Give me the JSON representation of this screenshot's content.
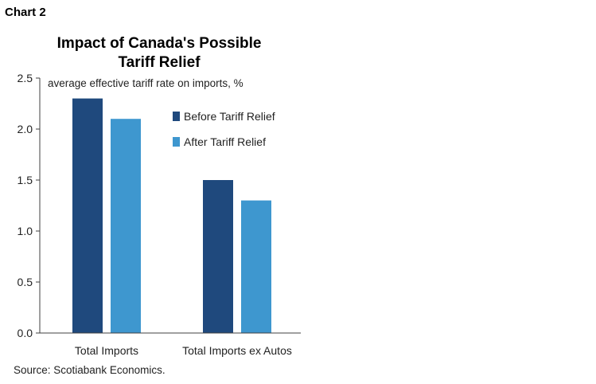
{
  "chart_label": "Chart 2",
  "source": "Source: Scotiabank Economics.",
  "colors": {
    "before": "#1f497d",
    "after": "#3e97cf",
    "axis": "#404040"
  },
  "chart_data": {
    "type": "bar",
    "title": "Impact of Canada's Possible Tariff Relief",
    "title_lines": [
      "Impact of Canada's Possible",
      "Tariff Relief"
    ],
    "subtitle": "average effective tariff rate on imports, %",
    "categories": [
      "Total Imports",
      "Total Imports ex Autos"
    ],
    "series": [
      {
        "name": "Before Tariff Relief",
        "values": [
          2.3,
          1.5
        ]
      },
      {
        "name": "After Tariff Relief",
        "values": [
          2.1,
          1.3
        ]
      }
    ],
    "ylim": [
      0,
      2.5
    ],
    "yticks": [
      "0.0",
      "0.5",
      "1.0",
      "1.5",
      "2.0",
      "2.5"
    ],
    "grid": false,
    "legend_position": "top-right"
  }
}
